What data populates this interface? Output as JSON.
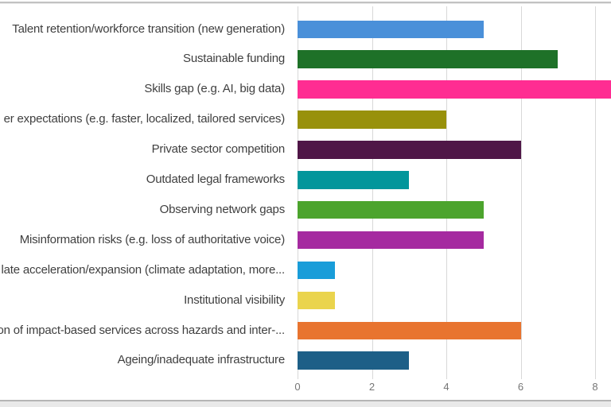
{
  "chart_data": {
    "type": "bar",
    "orientation": "horizontal",
    "title": "",
    "xlabel": "",
    "ylabel": "",
    "categories": [
      "Talent retention/workforce transition (new generation)",
      "Sustainable funding",
      "Skills gap (e.g. AI, big data)",
      "er expectations (e.g. faster, localized, tailored services)",
      "Private sector competition",
      "Outdated legal frameworks",
      "Observing network gaps",
      "Misinformation risks (e.g. loss of authoritative voice)",
      "late acceleration/expansion (climate adaptation, more...",
      "Institutional visibility",
      "on of impact-based services across hazards and inter-...",
      "Ageing/inadequate infrastructure"
    ],
    "values": [
      5,
      7,
      9,
      4,
      6,
      3,
      5,
      5,
      1,
      1,
      6,
      3
    ],
    "bar_colors": [
      "#4A90D9",
      "#1E7128",
      "#FF2D92",
      "#98910B",
      "#4F1647",
      "#02969B",
      "#4CA42D",
      "#A52AA0",
      "#199DD9",
      "#EAD44D",
      "#E8742F",
      "#1D5F87"
    ],
    "x_ticks": [
      "0",
      "2",
      "4",
      "6",
      "8"
    ],
    "x_tick_values": [
      0,
      2,
      4,
      6,
      8
    ],
    "xlim": [
      0,
      8.43
    ],
    "grid": true,
    "legend": false,
    "clipped_series_max": true,
    "gridline_color": "#d8d8d8",
    "axis_text_color": "#767676",
    "label_text_color": "#3f3f3f"
  }
}
